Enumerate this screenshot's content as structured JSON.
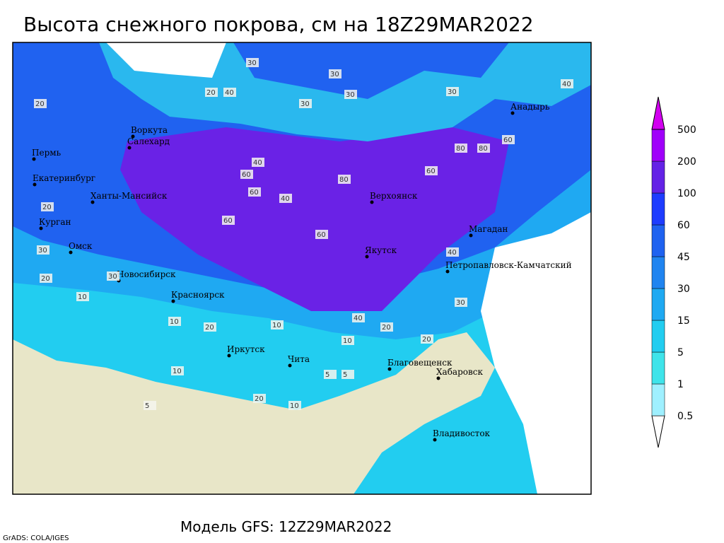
{
  "title": "Высота снежного покрова, см на 18Z29MAR2022",
  "model_line": "Модель GFS: 12Z29MAR2022",
  "credit": "GrADS: COLA/IGES",
  "colorbar": {
    "levels": [
      0.5,
      1,
      5,
      15,
      30,
      45,
      60,
      100,
      200,
      500
    ],
    "colors": [
      "#ffffff",
      "#9ff0ff",
      "#3fe4ea",
      "#22cdf0",
      "#1fa9f2",
      "#2084f0",
      "#1f62f0",
      "#1e3cff",
      "#6422e6",
      "#a000fa",
      "#d200f0"
    ]
  },
  "cities": [
    "Воркута",
    "Салехард",
    "Пермь",
    "Екатеринбург",
    "Ханты-Мансийск",
    "Курган",
    "Омск",
    "Новосибирск",
    "Красноярск",
    "Иркутск",
    "Чита",
    "Благовещенск",
    "Хабаровск",
    "Владивосток",
    "Якутск",
    "Верхоянск",
    "Магадан",
    "Анадырь",
    "Петропавловск-Камчатский"
  ],
  "contour_labels": [
    30,
    30,
    30,
    30,
    20,
    40,
    30,
    40,
    20,
    80,
    60,
    80,
    60,
    40,
    60,
    60,
    40,
    60,
    80,
    60,
    40,
    30,
    20,
    20,
    30,
    10,
    10,
    20,
    10,
    10,
    5,
    5,
    20,
    40,
    20,
    10,
    20,
    30,
    10,
    5
  ]
}
